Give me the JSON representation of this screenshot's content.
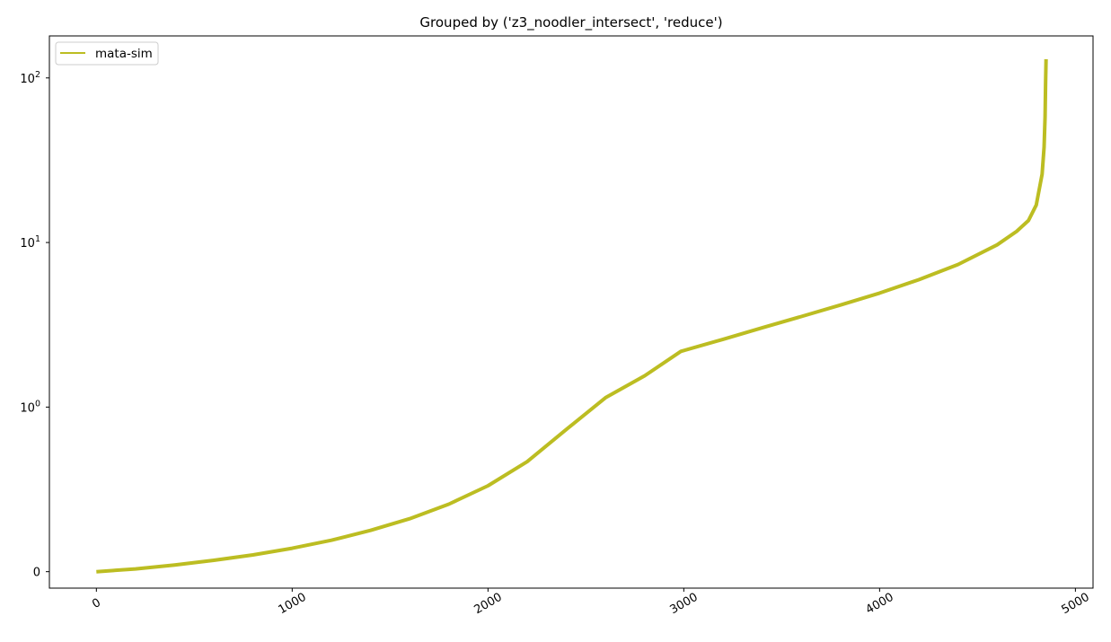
{
  "chart_data": {
    "type": "line",
    "title": "Grouped by ('z3_noodler_intersect', 'reduce')",
    "xlabel": "",
    "ylabel": "",
    "yscale": "symlog",
    "xlim": [
      -240,
      5090
    ],
    "ylim": [
      -0.1,
      180
    ],
    "grid": false,
    "legend_position": "top-left",
    "x_ticks": [
      {
        "value": 0,
        "label": "0"
      },
      {
        "value": 1000,
        "label": "1000"
      },
      {
        "value": 2000,
        "label": "2000"
      },
      {
        "value": 3000,
        "label": "3000"
      },
      {
        "value": 4000,
        "label": "4000"
      },
      {
        "value": 5000,
        "label": "5000"
      }
    ],
    "y_ticks": [
      {
        "value": 0,
        "base": "0",
        "exp": ""
      },
      {
        "value": 1,
        "base": "10",
        "exp": "0"
      },
      {
        "value": 10,
        "base": "10",
        "exp": "1"
      },
      {
        "value": 100,
        "base": "10",
        "exp": "2"
      }
    ],
    "series": [
      {
        "name": "mata-sim",
        "color": "#bcbd22",
        "points": [
          [
            0,
            0.0
          ],
          [
            200,
            0.017
          ],
          [
            400,
            0.041
          ],
          [
            600,
            0.069
          ],
          [
            800,
            0.102
          ],
          [
            1000,
            0.142
          ],
          [
            1200,
            0.191
          ],
          [
            1400,
            0.251
          ],
          [
            1600,
            0.322
          ],
          [
            1800,
            0.41
          ],
          [
            2000,
            0.522
          ],
          [
            2200,
            0.668
          ],
          [
            2400,
            0.864
          ],
          [
            2600,
            1.14
          ],
          [
            2800,
            1.55
          ],
          [
            2985,
            2.18
          ],
          [
            3200,
            2.58
          ],
          [
            3400,
            3.03
          ],
          [
            3600,
            3.55
          ],
          [
            3800,
            4.17
          ],
          [
            4000,
            4.93
          ],
          [
            4200,
            5.94
          ],
          [
            4400,
            7.35
          ],
          [
            4600,
            9.68
          ],
          [
            4700,
            11.7
          ],
          [
            4760,
            13.6
          ],
          [
            4800,
            16.9
          ],
          [
            4830,
            26.0
          ],
          [
            4840,
            38.0
          ],
          [
            4845,
            58.0
          ],
          [
            4848,
            95.0
          ],
          [
            4850,
            130.0
          ]
        ]
      }
    ]
  }
}
